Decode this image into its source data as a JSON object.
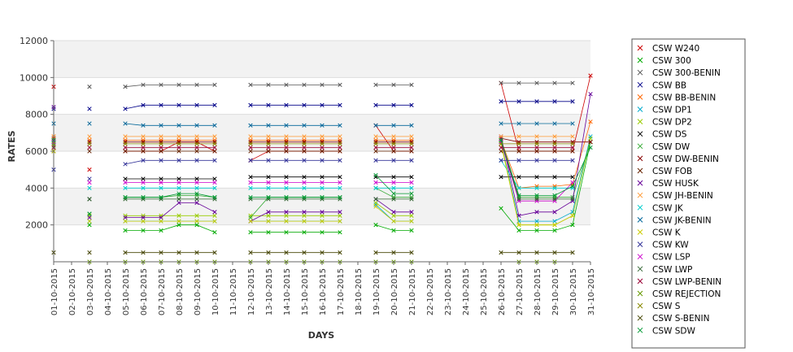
{
  "chart_data": {
    "type": "line",
    "xlabel": "DAYS",
    "ylabel": "RATES",
    "ylim": [
      0,
      12000
    ],
    "yticks": [
      2000,
      4000,
      6000,
      8000,
      10000,
      12000
    ],
    "grid": true,
    "legend_position": "right",
    "categories": [
      "01-10-2015",
      "02-10-2015",
      "03-10-2015",
      "04-10-2015",
      "05-10-2015",
      "06-10-2015",
      "07-10-2015",
      "08-10-2015",
      "09-10-2015",
      "10-10-2015",
      "11-10-2015",
      "12-10-2015",
      "13-10-2015",
      "14-10-2015",
      "15-10-2015",
      "16-10-2015",
      "17-10-2015",
      "18-10-2015",
      "19-10-2015",
      "20-10-2015",
      "21-10-2015",
      "22-10-2015",
      "23-10-2015",
      "24-10-2015",
      "25-10-2015",
      "26-10-2015",
      "27-10-2015",
      "28-10-2015",
      "29-10-2015",
      "30-10-2015",
      "31-10-2015"
    ],
    "series": [
      {
        "name": "CSW  W240",
        "color": "#cc0000",
        "values": [
          9500,
          null,
          5000,
          null,
          6000,
          6000,
          6000,
          6500,
          6500,
          6000,
          null,
          5500,
          6000,
          6000,
          6000,
          6000,
          6000,
          null,
          7400,
          6000,
          6000,
          null,
          null,
          null,
          null,
          9700,
          6000,
          6000,
          6000,
          6000,
          10100
        ]
      },
      {
        "name": "CSW 300",
        "color": "#00aa00",
        "values": [
          6500,
          null,
          2000,
          null,
          1700,
          1700,
          1700,
          2000,
          2000,
          1600,
          null,
          1600,
          1600,
          1600,
          1600,
          1600,
          1600,
          null,
          2000,
          1700,
          1700,
          null,
          null,
          null,
          null,
          2900,
          1700,
          1700,
          1700,
          2000,
          6500
        ]
      },
      {
        "name": "CSW 300-BENIN",
        "color": "#555555",
        "values": [
          null,
          null,
          9500,
          null,
          9500,
          9600,
          9600,
          9600,
          9600,
          9600,
          null,
          9600,
          9600,
          9600,
          9600,
          9600,
          9600,
          null,
          9600,
          9600,
          9600,
          null,
          null,
          null,
          null,
          9700,
          9700,
          9700,
          9700,
          9700,
          null
        ]
      },
      {
        "name": "CSW BB",
        "color": "#000088",
        "values": [
          8300,
          null,
          8300,
          null,
          8300,
          8500,
          8500,
          8500,
          8500,
          8500,
          null,
          8500,
          8500,
          8500,
          8500,
          8500,
          8500,
          null,
          8500,
          8500,
          8500,
          null,
          null,
          null,
          null,
          8700,
          8700,
          8700,
          8700,
          8700,
          null
        ]
      },
      {
        "name": "CSW BB-BENIN",
        "color": "#ff6600",
        "values": [
          6800,
          null,
          6600,
          null,
          6600,
          6600,
          6600,
          6600,
          6600,
          6600,
          null,
          6600,
          6600,
          6600,
          6600,
          6600,
          6600,
          null,
          6600,
          6600,
          6600,
          null,
          null,
          null,
          null,
          6600,
          4000,
          4100,
          4100,
          4200,
          7600
        ]
      },
      {
        "name": "CSW DP1",
        "color": "#00aacc",
        "values": [
          6000,
          null,
          2200,
          null,
          2200,
          2200,
          2200,
          2200,
          2200,
          2200,
          null,
          2200,
          2200,
          2200,
          2200,
          2200,
          2200,
          null,
          3100,
          2200,
          2200,
          null,
          null,
          null,
          null,
          6500,
          2200,
          2200,
          2200,
          2700,
          6800
        ]
      },
      {
        "name": "CSW DP2",
        "color": "#99cc00",
        "values": [
          6200,
          null,
          2500,
          null,
          2500,
          2500,
          2500,
          2500,
          2500,
          2500,
          null,
          2500,
          2500,
          2500,
          2500,
          2500,
          2500,
          null,
          3200,
          2500,
          2500,
          null,
          null,
          null,
          null,
          6500,
          2000,
          2000,
          2000,
          2500,
          6700
        ]
      },
      {
        "name": "CSW DS",
        "color": "#000000",
        "values": [
          6500,
          null,
          3400,
          null,
          4500,
          4500,
          4500,
          4500,
          4500,
          4500,
          null,
          4600,
          4600,
          4600,
          4600,
          4600,
          4600,
          null,
          4600,
          4600,
          4600,
          null,
          null,
          null,
          null,
          4600,
          4600,
          4600,
          4600,
          4600,
          null
        ]
      },
      {
        "name": "CSW DW",
        "color": "#33aa33",
        "values": [
          6300,
          null,
          2600,
          null,
          3500,
          3500,
          3500,
          3600,
          3600,
          3500,
          null,
          2400,
          3500,
          3500,
          3500,
          3500,
          3500,
          null,
          4000,
          3500,
          3500,
          null,
          null,
          null,
          null,
          6500,
          3500,
          3500,
          3500,
          3500,
          6500
        ]
      },
      {
        "name": "CSW DW-BENIN",
        "color": "#880000",
        "values": [
          6700,
          null,
          6500,
          null,
          6500,
          6500,
          6500,
          6500,
          6500,
          6500,
          null,
          6500,
          6500,
          6500,
          6500,
          6500,
          6500,
          null,
          6500,
          6500,
          6500,
          null,
          null,
          null,
          null,
          6700,
          6500,
          6500,
          6500,
          6500,
          6500
        ]
      },
      {
        "name": "CSW FOB",
        "color": "#662200",
        "values": [
          6000,
          null,
          6000,
          null,
          6000,
          6000,
          6000,
          6000,
          6000,
          6000,
          null,
          6000,
          6000,
          6000,
          6000,
          6000,
          6000,
          null,
          6000,
          6000,
          6000,
          null,
          null,
          null,
          null,
          6000,
          6000,
          6000,
          6000,
          6000,
          null
        ]
      },
      {
        "name": "CSW HUSK",
        "color": "#660099",
        "values": [
          8400,
          null,
          2400,
          null,
          2400,
          2400,
          2400,
          3200,
          3200,
          2700,
          null,
          2200,
          2700,
          2700,
          2700,
          2700,
          2700,
          null,
          3400,
          2700,
          2700,
          null,
          null,
          null,
          null,
          6800,
          2500,
          2700,
          2700,
          3300,
          9100
        ]
      },
      {
        "name": "CSW JH-BENIN",
        "color": "#ff9933",
        "values": [
          6800,
          null,
          6800,
          null,
          6800,
          6800,
          6800,
          6800,
          6800,
          6800,
          null,
          6800,
          6800,
          6800,
          6800,
          6800,
          6800,
          null,
          6800,
          6800,
          6800,
          null,
          null,
          null,
          null,
          6800,
          6800,
          6800,
          6800,
          6800,
          null
        ]
      },
      {
        "name": "CSW JK",
        "color": "#00cccc",
        "values": [
          6500,
          null,
          4000,
          null,
          4000,
          4000,
          4000,
          4000,
          4000,
          4000,
          null,
          4000,
          4000,
          4000,
          4000,
          4000,
          4000,
          null,
          4000,
          4000,
          4000,
          null,
          null,
          null,
          null,
          5500,
          4000,
          4000,
          4000,
          4000,
          null
        ]
      },
      {
        "name": "CSW JK-BENIN",
        "color": "#006699",
        "values": [
          7500,
          null,
          7500,
          null,
          7500,
          7400,
          7400,
          7400,
          7400,
          7400,
          null,
          7400,
          7400,
          7400,
          7400,
          7400,
          7400,
          null,
          7400,
          7400,
          7400,
          null,
          null,
          null,
          null,
          7500,
          7500,
          7500,
          7500,
          7500,
          null
        ]
      },
      {
        "name": "CSW K",
        "color": "#cccc00",
        "values": [
          6000,
          null,
          2200,
          null,
          2200,
          2200,
          2200,
          2200,
          2200,
          2200,
          null,
          2200,
          2200,
          2200,
          2200,
          2200,
          2200,
          null,
          3000,
          2200,
          2200,
          null,
          null,
          null,
          null,
          6400,
          2000,
          2000,
          2000,
          2500,
          null
        ]
      },
      {
        "name": "CSW KW",
        "color": "#333399",
        "values": [
          5000,
          null,
          4500,
          null,
          5300,
          5500,
          5500,
          5500,
          5500,
          5500,
          null,
          5500,
          5500,
          5500,
          5500,
          5500,
          5500,
          null,
          5500,
          5500,
          5500,
          null,
          null,
          null,
          null,
          5500,
          5500,
          5500,
          5500,
          5500,
          null
        ]
      },
      {
        "name": "CSW LSP",
        "color": "#cc00cc",
        "values": [
          6500,
          null,
          4300,
          null,
          4300,
          4300,
          4300,
          4300,
          4300,
          4300,
          null,
          4300,
          4300,
          4300,
          4300,
          4300,
          4300,
          null,
          4300,
          4300,
          4300,
          null,
          null,
          null,
          null,
          6500,
          3300,
          3300,
          3300,
          4300,
          null
        ]
      },
      {
        "name": "CSW LWP",
        "color": "#336633",
        "values": [
          6600,
          null,
          3400,
          null,
          3400,
          3400,
          3400,
          3400,
          3400,
          3400,
          null,
          3400,
          3400,
          3400,
          3400,
          3400,
          3400,
          null,
          3400,
          3400,
          3400,
          null,
          null,
          null,
          null,
          6600,
          3400,
          3400,
          3400,
          3400,
          null
        ]
      },
      {
        "name": "CSW LWP-BENIN",
        "color": "#990033",
        "values": [
          6200,
          null,
          6200,
          null,
          6200,
          6200,
          6200,
          6200,
          6200,
          6200,
          null,
          6200,
          6200,
          6200,
          6200,
          6200,
          6200,
          null,
          6200,
          6200,
          6200,
          null,
          null,
          null,
          null,
          6200,
          6200,
          6200,
          6200,
          6200,
          null
        ]
      },
      {
        "name": "CSW REJECTION",
        "color": "#669900",
        "values": [
          null,
          null,
          0,
          null,
          0,
          0,
          0,
          0,
          0,
          0,
          null,
          0,
          0,
          0,
          0,
          0,
          0,
          null,
          0,
          0,
          0,
          null,
          null,
          null,
          null,
          null,
          0,
          0,
          0,
          null,
          null
        ]
      },
      {
        "name": "CSW S",
        "color": "#888800",
        "values": [
          6400,
          null,
          6400,
          null,
          6400,
          6400,
          6400,
          6400,
          6400,
          6400,
          null,
          6400,
          6400,
          6400,
          6400,
          6400,
          6400,
          null,
          6400,
          6400,
          6400,
          null,
          null,
          null,
          null,
          6400,
          6400,
          6400,
          6400,
          6400,
          null
        ]
      },
      {
        "name": "CSW S-BENIN",
        "color": "#444400",
        "values": [
          500,
          null,
          500,
          null,
          500,
          500,
          500,
          500,
          500,
          500,
          null,
          500,
          500,
          500,
          500,
          500,
          500,
          null,
          500,
          500,
          500,
          null,
          null,
          null,
          null,
          500,
          500,
          500,
          500,
          500,
          null
        ]
      },
      {
        "name": "CSW SDW",
        "color": "#009933",
        "values": [
          6600,
          null,
          2600,
          null,
          3500,
          3500,
          3500,
          3700,
          3700,
          3500,
          null,
          3500,
          3500,
          3500,
          3500,
          3500,
          3500,
          null,
          4700,
          3700,
          3700,
          null,
          null,
          null,
          null,
          6600,
          3600,
          3600,
          3600,
          4100,
          6200
        ]
      }
    ]
  }
}
